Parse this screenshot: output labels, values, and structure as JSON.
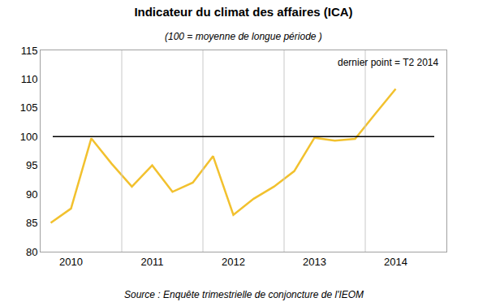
{
  "chart_data": {
    "type": "line",
    "title": "Indicateur du climat des affaires (ICA)",
    "subtitle": "(100 = moyenne de longue période )",
    "annotations": [
      "dernier point = T2 2014",
      "Source : Enquête trimestrielle de conjoncture de l'IEOM"
    ],
    "categories": [
      null,
      "2010",
      null,
      null,
      null,
      "2011",
      null,
      null,
      null,
      "2012",
      null,
      null,
      null,
      "2013",
      null,
      null,
      null,
      "2014"
    ],
    "values": [
      85,
      87.5,
      99.7,
      95.3,
      91.3,
      95,
      90.4,
      92,
      96.6,
      86.4,
      89.2,
      91.3,
      94,
      99.8,
      99.3,
      99.6,
      104,
      108.3
    ],
    "color": "#f2c12e",
    "reference_line": 100,
    "ylim": [
      80,
      115
    ],
    "yticks": [
      80,
      85,
      90,
      95,
      100,
      105,
      110,
      115
    ],
    "grid": true
  }
}
